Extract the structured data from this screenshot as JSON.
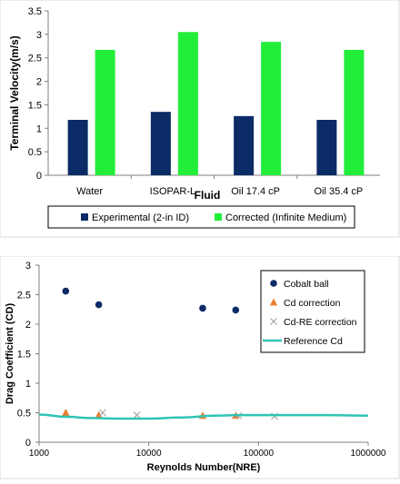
{
  "colors": {
    "navy": "#0b2b66",
    "green": "#22ee3a",
    "orange": "#ed7d31",
    "gray": "#a6a6a6",
    "teal": "#2ec4b6",
    "axis": "#7f7f7f",
    "frame": "#d9d9d9"
  },
  "chart_data": [
    {
      "type": "bar",
      "title": "",
      "xlabel": "Fluid",
      "ylabel": "Terminal Velocity(m/s)",
      "ylim": [
        0,
        3.5
      ],
      "yticks": [
        "0",
        "0.5",
        "1",
        "1.5",
        "2",
        "2.5",
        "3",
        "3.5"
      ],
      "categories": [
        "Water",
        "ISOPAR-L",
        "Oil 17.4 cP",
        "Oil 35.4 cP"
      ],
      "series": [
        {
          "name": "Experimental (2-in ID)",
          "color": "#0b2b66",
          "values": [
            1.18,
            1.35,
            1.26,
            1.18
          ]
        },
        {
          "name": "Corrected (Infinite Medium)",
          "color": "#22ee3a",
          "values": [
            2.67,
            3.05,
            2.84,
            2.67
          ]
        }
      ],
      "grid": false,
      "legend": "bottom"
    },
    {
      "type": "scatter",
      "title": "",
      "xlabel": "Reynolds Number(NRE)",
      "ylabel": "Drag Coefficient (CD)",
      "xscale": "log",
      "xlim": [
        1000,
        1000000
      ],
      "ylim": [
        0,
        3
      ],
      "xticks": [
        "1000",
        "10000",
        "100000",
        "1000000"
      ],
      "yticks": [
        "0",
        "0.5",
        "1",
        "1.5",
        "2",
        "2.5",
        "3"
      ],
      "series": [
        {
          "name": "Cobalt ball",
          "marker": "circle",
          "color": "#0b2b66",
          "x": [
            1750,
            3500,
            31000,
            62000
          ],
          "y": [
            2.56,
            2.33,
            2.27,
            2.24
          ]
        },
        {
          "name": "Cd correction",
          "marker": "triangle",
          "color": "#ed7d31",
          "x": [
            1750,
            3500,
            31000,
            62000
          ],
          "y": [
            0.5,
            0.46,
            0.45,
            0.45
          ]
        },
        {
          "name": "Cd-RE correction",
          "marker": "x",
          "color": "#a6a6a6",
          "x": [
            3800,
            7800,
            66000,
            140000
          ],
          "y": [
            0.5,
            0.46,
            0.45,
            0.44
          ]
        },
        {
          "name": "Reference Cd",
          "marker": "line",
          "color": "#2ec4b6",
          "x": [
            1000,
            1800,
            3000,
            5000,
            10000,
            20000,
            40000,
            70000,
            100000,
            200000,
            400000,
            1000000
          ],
          "y": [
            0.47,
            0.43,
            0.41,
            0.4,
            0.4,
            0.42,
            0.45,
            0.46,
            0.46,
            0.46,
            0.46,
            0.45
          ]
        }
      ],
      "grid": false,
      "legend": "top-right"
    }
  ]
}
